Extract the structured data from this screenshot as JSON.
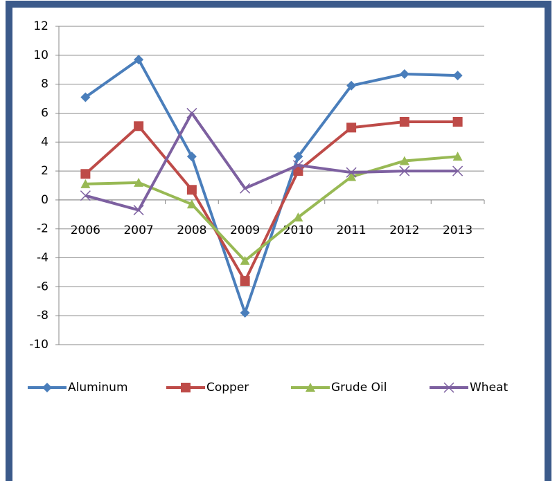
{
  "chart_data": {
    "type": "line",
    "categories": [
      "2006",
      "2007",
      "2008",
      "2009",
      "2010",
      "2011",
      "2012",
      "2013"
    ],
    "series": [
      {
        "name": "Aluminum",
        "color": "#4a7ebb",
        "marker": "diamond",
        "values": [
          7.1,
          9.7,
          3.0,
          -7.8,
          3.0,
          7.9,
          8.7,
          8.6
        ]
      },
      {
        "name": "Copper",
        "color": "#be4b48",
        "marker": "square",
        "values": [
          1.8,
          5.1,
          0.7,
          -5.6,
          2.0,
          5.0,
          5.4,
          5.4
        ]
      },
      {
        "name": "Grude Oil",
        "color": "#98b954",
        "marker": "triangle",
        "values": [
          1.1,
          1.2,
          -0.3,
          -4.2,
          -1.2,
          1.6,
          2.7,
          3.0
        ]
      },
      {
        "name": "Wheat",
        "color": "#7d60a0",
        "marker": "x",
        "values": [
          0.3,
          -0.7,
          6.0,
          0.8,
          2.4,
          1.9,
          2.0,
          2.0
        ]
      }
    ],
    "ylim": [
      -10,
      12
    ],
    "yticks": [
      -10,
      -8,
      -6,
      -4,
      -2,
      0,
      2,
      4,
      6,
      8,
      10,
      12
    ],
    "grid": true,
    "legend": "bottom"
  }
}
